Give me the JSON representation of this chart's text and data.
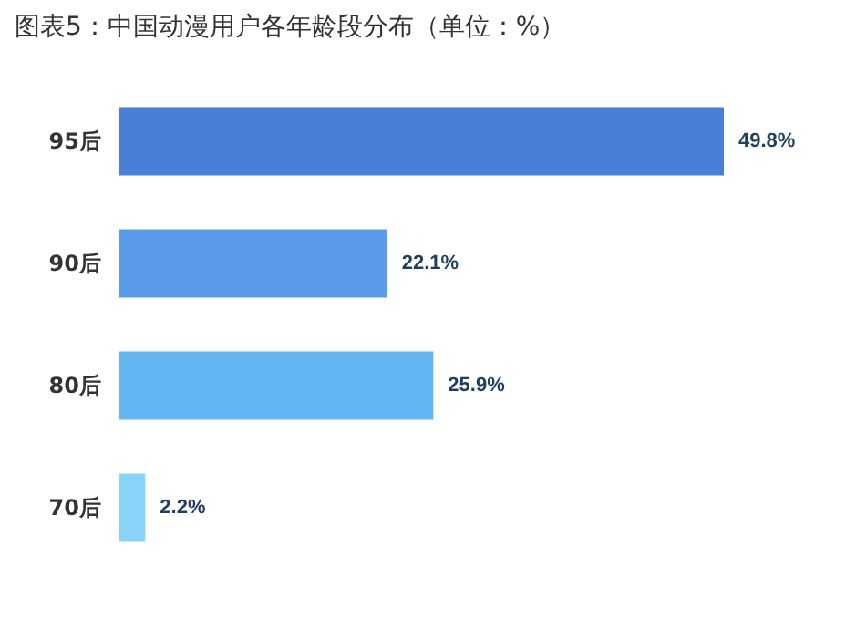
{
  "chart_data": {
    "type": "bar",
    "orientation": "horizontal",
    "title": "图表5：中国动漫用户各年龄段分布（单位：%）",
    "categories": [
      "95后",
      "90后",
      "80后",
      "70后"
    ],
    "values": [
      49.8,
      22.1,
      25.9,
      2.2
    ],
    "colors": [
      "#4a7fd8",
      "#5a9ae8",
      "#63b5f2",
      "#8ad3f8"
    ],
    "value_labels": [
      "49.8%",
      "22.1%",
      "25.9%",
      "2.2%"
    ]
  }
}
